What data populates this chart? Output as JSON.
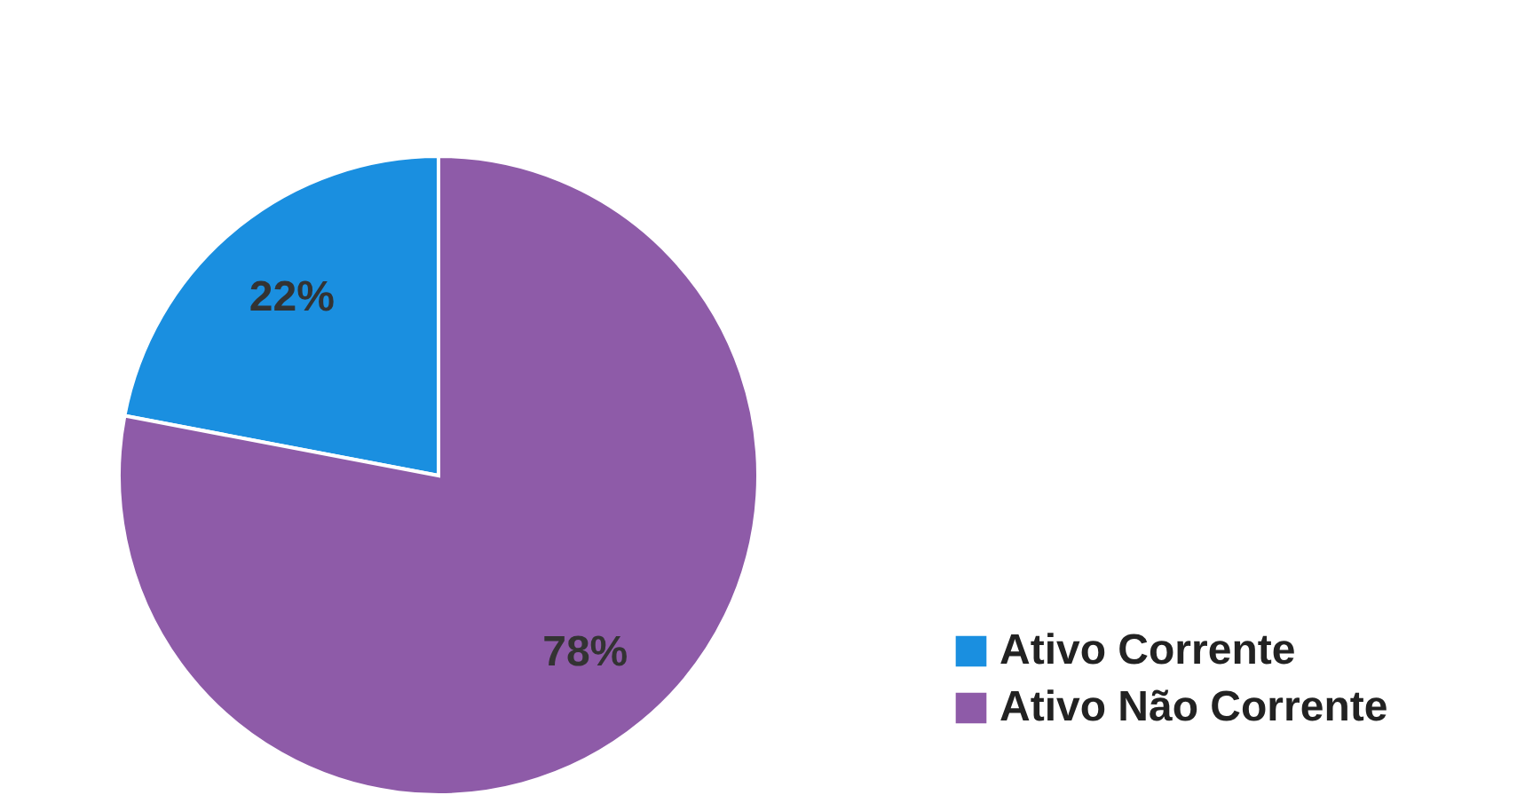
{
  "chart_data": {
    "type": "pie",
    "categories": [
      "Ativo Corrente",
      "Ativo Não Corrente"
    ],
    "values": [
      22,
      78
    ],
    "colors": [
      "#1a8fe0",
      "#8e5ba8"
    ],
    "value_labels": [
      "22%",
      "78%"
    ],
    "legend": "bottom right"
  }
}
